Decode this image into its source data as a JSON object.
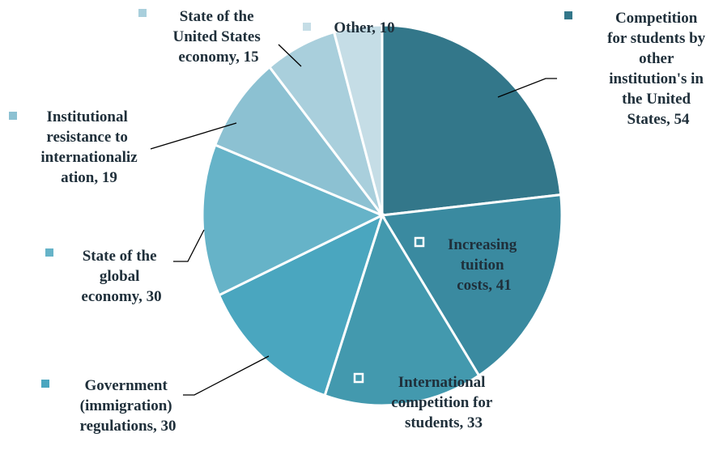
{
  "chart_data": {
    "type": "pie",
    "values": [
      54,
      41,
      33,
      30,
      30,
      19,
      15,
      10
    ],
    "value_labels": [
      "Competition for students by other institution's in the United States, 54",
      "Increasing tuition costs, 41",
      "International competition for students, 33",
      "Government (immigration) regulations, 30",
      "State of the global economy, 30",
      "Institutional resistance to internationalization, 19",
      "State of the United States economy, 15",
      "Other, 10"
    ],
    "colors": [
      "#33778a",
      "#3a8aa0",
      "#4399ae",
      "#4aa6bf",
      "#66b3c8",
      "#8cc1d2",
      "#a9cfdc",
      "#c5dde6"
    ]
  }
}
